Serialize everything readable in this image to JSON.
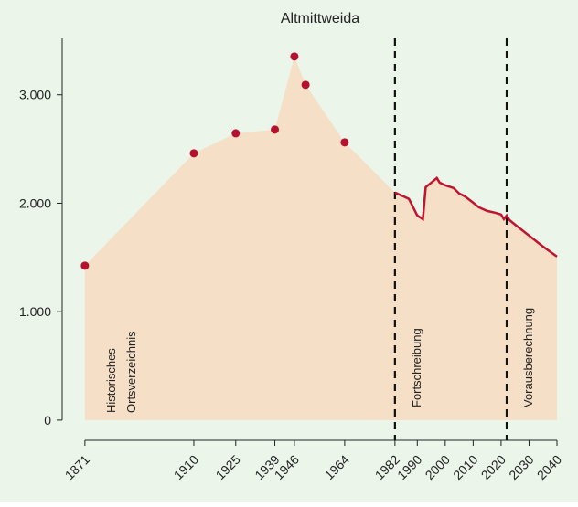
{
  "chart_data": {
    "type": "area-line",
    "title": "Altmittweida",
    "area_color": "#f5dfc6",
    "background": "#ebf5ea",
    "series": [
      {
        "name": "Historisches Ortsverzeichnis",
        "color": "#b5102e",
        "x": [
          1871,
          1910,
          1925,
          1939,
          1946,
          1950,
          1964
        ],
        "values": [
          1424,
          2460,
          2645,
          2679,
          3353,
          3092,
          2561
        ]
      },
      {
        "name": "Fortschreibung",
        "color": "#c0142f",
        "x": [
          1982,
          1985,
          1987,
          1990,
          1992,
          1993,
          1995,
          1997,
          1998,
          2000,
          2003,
          2005,
          2007,
          2010,
          2012,
          2015,
          2018,
          2020,
          2021,
          2022,
          2023,
          2025,
          2030,
          2035,
          2040
        ],
        "values": [
          2098,
          2064,
          2040,
          1887,
          1853,
          2148,
          2190,
          2232,
          2190,
          2165,
          2140,
          2089,
          2064,
          2005,
          1963,
          1929,
          1912,
          1896,
          1853,
          1887,
          1845,
          1803,
          1702,
          1601,
          1508
        ]
      }
    ],
    "periods": [
      {
        "x": 1982,
        "label": "Fortschreibung"
      },
      {
        "x": 2022,
        "label": "Vorausberechnung"
      }
    ],
    "history_label": [
      "Historisches",
      "Ortsverzeichnis"
    ],
    "xlim": [
      1864.5,
      2040
    ],
    "ylim": [
      -186,
      3520
    ],
    "xticks": [
      1871,
      1910,
      1925,
      1939,
      1946,
      1964,
      1982,
      1990,
      2000,
      2010,
      2020,
      2030,
      2040
    ],
    "yticks": [
      {
        "value": 0,
        "label": "0"
      },
      {
        "value": 1000,
        "label": "1.000"
      },
      {
        "value": 2000,
        "label": "2.000"
      },
      {
        "value": 3000,
        "label": "3.000"
      }
    ]
  }
}
